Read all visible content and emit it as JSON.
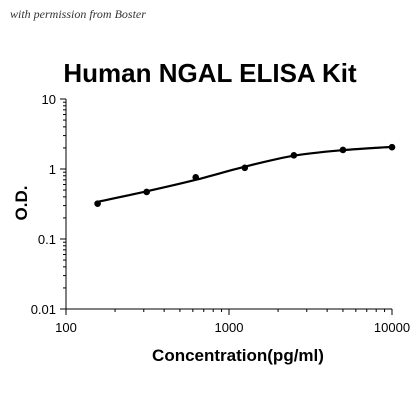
{
  "caption": "with permission from Boster",
  "chart_data": {
    "type": "scatter",
    "title": "Human NGAL ELISA Kit",
    "xlabel": "Concentration(pg/ml)",
    "ylabel": "O.D.",
    "x_scale": "log",
    "y_scale": "log",
    "xlim": [
      100,
      10000
    ],
    "ylim": [
      0.01,
      10
    ],
    "x_ticks": [
      "100",
      "1000",
      "10000"
    ],
    "y_ticks": [
      "0.01",
      "0.1",
      "1",
      "10"
    ],
    "grid": false,
    "legend": "none",
    "line": "smooth fitted curve",
    "x": [
      156.25,
      312.5,
      625,
      1250,
      2500,
      5000,
      10000
    ],
    "y": [
      0.32,
      0.47,
      0.76,
      1.04,
      1.57,
      1.87,
      2.05
    ],
    "curve_x": [
      156.25,
      312.5,
      625,
      1250,
      2500,
      5000,
      10000
    ],
    "curve_y": [
      0.34,
      0.48,
      0.7,
      1.08,
      1.55,
      1.86,
      2.07
    ]
  }
}
